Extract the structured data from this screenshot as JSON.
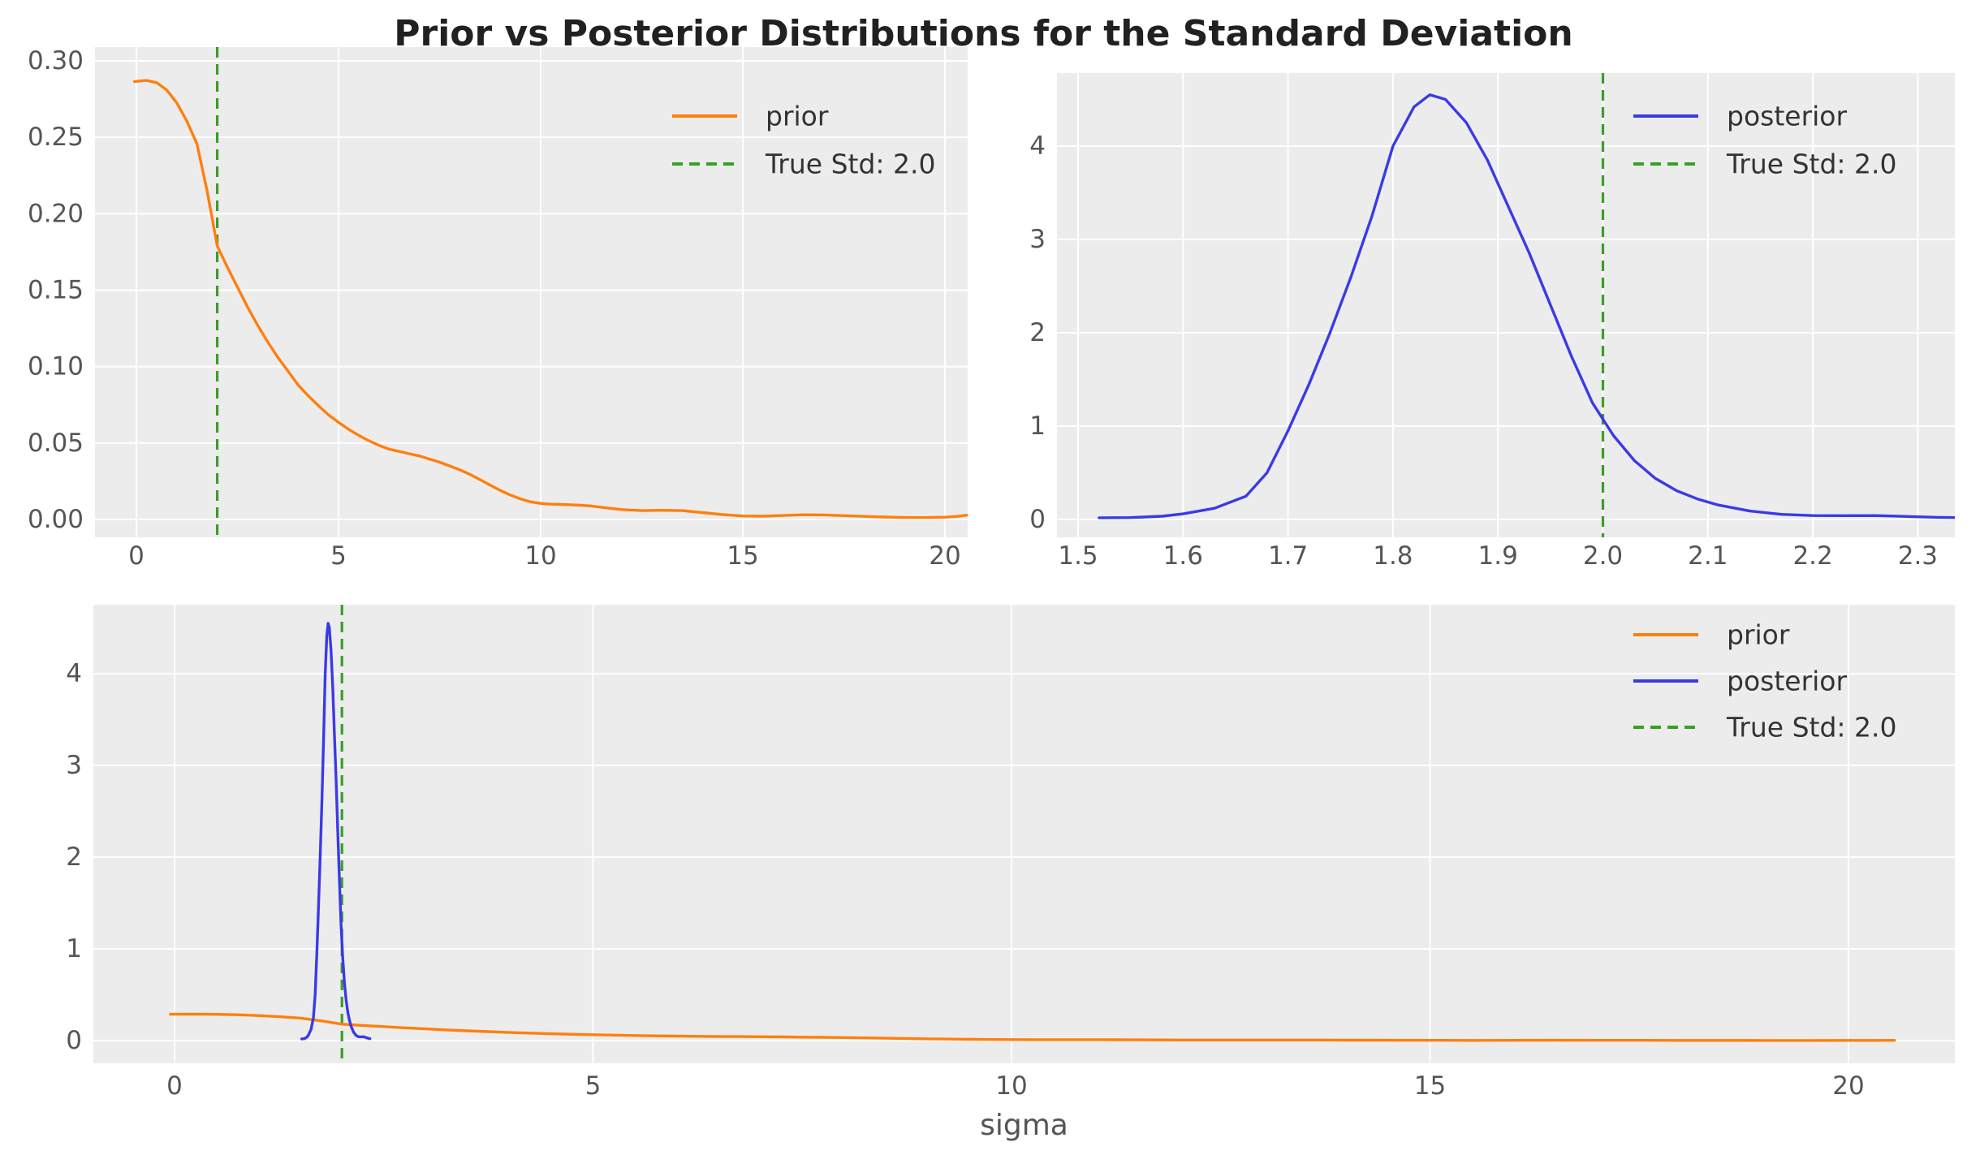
{
  "chart_data": {
    "figure_title": "Prior vs Posterior Distributions for the Standard Deviation",
    "colors": {
      "prior": "#ff7f0e",
      "posterior": "#3a3ae6",
      "true_std": "#3a9e28",
      "panel_bg": "#ececec",
      "grid": "#ffffff",
      "tick_text": "#555555",
      "legend_text": "#333333",
      "title_text": "#212121"
    },
    "series_pool": {
      "prior": {
        "x": [
          -0.05,
          0.25,
          0.5,
          0.75,
          1.0,
          1.25,
          1.5,
          1.75,
          2.0,
          2.25,
          2.5,
          2.75,
          3.0,
          3.25,
          3.5,
          3.75,
          4.0,
          4.25,
          4.5,
          4.75,
          5.0,
          5.25,
          5.5,
          5.75,
          6.0,
          6.25,
          6.5,
          6.75,
          7.0,
          7.25,
          7.5,
          7.75,
          8.0,
          8.25,
          8.5,
          8.75,
          9.0,
          9.25,
          9.5,
          9.75,
          10.0,
          10.25,
          10.5,
          10.75,
          11.0,
          11.25,
          11.5,
          11.75,
          12.0,
          12.5,
          13.0,
          13.5,
          14.0,
          14.5,
          15.0,
          15.5,
          16.0,
          16.5,
          17.0,
          17.5,
          18.0,
          18.5,
          19.0,
          19.5,
          20.0,
          20.3,
          20.55
        ],
        "y": [
          0.2865,
          0.2872,
          0.2858,
          0.281,
          0.2725,
          0.2605,
          0.2455,
          0.215,
          0.179,
          0.165,
          0.152,
          0.139,
          0.127,
          0.116,
          0.106,
          0.097,
          0.088,
          0.081,
          0.0745,
          0.0685,
          0.0635,
          0.059,
          0.055,
          0.0515,
          0.0485,
          0.046,
          0.0445,
          0.043,
          0.0415,
          0.0395,
          0.0375,
          0.035,
          0.0325,
          0.0295,
          0.026,
          0.0225,
          0.019,
          0.016,
          0.0135,
          0.0115,
          0.0105,
          0.01,
          0.0098,
          0.0096,
          0.0093,
          0.0088,
          0.008,
          0.0072,
          0.0065,
          0.0058,
          0.006,
          0.0058,
          0.0045,
          0.0032,
          0.0023,
          0.0021,
          0.0026,
          0.0031,
          0.003,
          0.0025,
          0.002,
          0.0016,
          0.0013,
          0.0012,
          0.0015,
          0.002,
          0.0028
        ]
      },
      "posterior": {
        "x": [
          1.52,
          1.55,
          1.58,
          1.6,
          1.63,
          1.66,
          1.68,
          1.7,
          1.72,
          1.74,
          1.76,
          1.78,
          1.8,
          1.82,
          1.835,
          1.85,
          1.87,
          1.89,
          1.91,
          1.93,
          1.95,
          1.97,
          1.99,
          2.01,
          2.03,
          2.05,
          2.07,
          2.09,
          2.11,
          2.14,
          2.17,
          2.2,
          2.23,
          2.26,
          2.29,
          2.32,
          2.335
        ],
        "y": [
          0.018,
          0.02,
          0.035,
          0.06,
          0.12,
          0.25,
          0.5,
          0.95,
          1.45,
          2.0,
          2.6,
          3.25,
          4.0,
          4.42,
          4.55,
          4.5,
          4.25,
          3.85,
          3.35,
          2.85,
          2.3,
          1.75,
          1.25,
          0.9,
          0.63,
          0.44,
          0.31,
          0.22,
          0.155,
          0.09,
          0.055,
          0.042,
          0.041,
          0.042,
          0.032,
          0.023,
          0.02
        ]
      }
    },
    "charts": [
      {
        "type": "line",
        "name": "prior-panel",
        "xlim": [
          -1.03,
          20.57
        ],
        "ylim": [
          -0.012,
          0.308
        ],
        "xticks": [
          0,
          5,
          10,
          15,
          20
        ],
        "xtick_labels": [
          "0",
          "5",
          "10",
          "15",
          "20"
        ],
        "yticks": [
          0.0,
          0.05,
          0.1,
          0.15,
          0.2,
          0.25,
          0.3
        ],
        "ytick_labels": [
          "0.00",
          "0.05",
          "0.10",
          "0.15",
          "0.20",
          "0.25",
          "0.30"
        ],
        "xlabel": "",
        "series": [
          "prior"
        ],
        "vline": {
          "x": 2.0,
          "label": "True Std: 2.0"
        },
        "legend": [
          {
            "label": "prior",
            "color_key": "prior",
            "dash": false
          },
          {
            "label": "True Std: 2.0",
            "color_key": "true_std",
            "dash": true
          }
        ]
      },
      {
        "type": "line",
        "name": "posterior-panel",
        "xlim": [
          1.482,
          2.337
        ],
        "ylim": [
          -0.19,
          4.78
        ],
        "xticks": [
          1.5,
          1.6,
          1.7,
          1.8,
          1.9,
          2.0,
          2.1,
          2.2,
          2.3
        ],
        "xtick_labels": [
          "1.5",
          "1.6",
          "1.7",
          "1.8",
          "1.9",
          "2.0",
          "2.1",
          "2.2",
          "2.3"
        ],
        "yticks": [
          0,
          1,
          2,
          3,
          4
        ],
        "ytick_labels": [
          "0",
          "1",
          "2",
          "3",
          "4"
        ],
        "xlabel": "",
        "series": [
          "posterior"
        ],
        "vline": {
          "x": 2.0,
          "label": "True Std: 2.0"
        },
        "legend": [
          {
            "label": "posterior",
            "color_key": "posterior",
            "dash": false
          },
          {
            "label": "True Std: 2.0",
            "color_key": "true_std",
            "dash": true
          }
        ]
      },
      {
        "type": "line",
        "name": "combined-panel",
        "xlim": [
          -0.97,
          21.3
        ],
        "ylim": [
          -0.25,
          4.75
        ],
        "xticks": [
          0,
          5,
          10,
          15,
          20
        ],
        "xtick_labels": [
          "0",
          "5",
          "10",
          "15",
          "20"
        ],
        "yticks": [
          0,
          1,
          2,
          3,
          4
        ],
        "ytick_labels": [
          "0",
          "1",
          "2",
          "3",
          "4"
        ],
        "xlabel": "sigma",
        "series": [
          "prior",
          "posterior"
        ],
        "vline": {
          "x": 2.0,
          "label": "True Std: 2.0"
        },
        "legend": [
          {
            "label": "prior",
            "color_key": "prior",
            "dash": false
          },
          {
            "label": "posterior",
            "color_key": "posterior",
            "dash": false
          },
          {
            "label": "True Std: 2.0",
            "color_key": "true_std",
            "dash": true
          }
        ]
      }
    ]
  }
}
